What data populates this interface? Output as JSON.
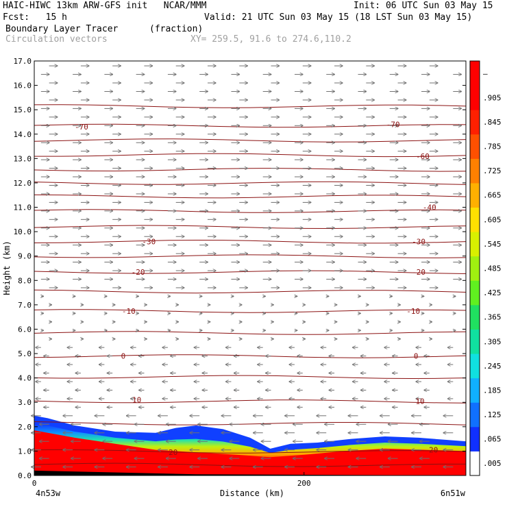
{
  "header": {
    "line1_left": "HAIC-HIWC 13km ARW-GFS init   NCAR/MMM",
    "line1_right": "Init: 06 UTC Sun 03 May 15",
    "line2_left": "Fcst:   15 h",
    "line2_right": "Valid: 21 UTC Sun 03 May 15 (18 LST Sun 03 May 15)",
    "field_name": "Boundary Layer Tracer",
    "field_unit": "(fraction)",
    "vector_label": "Circulation vectors",
    "xy_label": "XY= 259.5, 91.6 to 274.6,110.2"
  },
  "chart_data": {
    "type": "heatmap",
    "ylabel": "Height (km)",
    "xlabel": "Distance (km)",
    "ylim": [
      0,
      17
    ],
    "yticks": [
      "0.0",
      "1.0",
      "2.0",
      "3.0",
      "4.0",
      "5.0",
      "6.0",
      "7.0",
      "8.0",
      "9.0",
      "10.0",
      "11.0",
      "12.0",
      "13.0",
      "14.0",
      "15.0",
      "16.0",
      "17.0"
    ],
    "xlim": [
      0,
      320
    ],
    "xticks": [
      {
        "value": 0,
        "label": "0"
      },
      {
        "value": 200,
        "label": "200"
      }
    ],
    "x_endpoints": {
      "left": "4n53w",
      "right": "6n51w"
    },
    "colorbar": {
      "labels": [
        ".005",
        ".065",
        ".125",
        ".185",
        ".245",
        ".305",
        ".365",
        ".425",
        ".485",
        ".545",
        ".605",
        ".665",
        ".725",
        ".785",
        ".845",
        ".905",
        "–"
      ],
      "colors": [
        "#ffffff",
        "#1030ff",
        "#1070ff",
        "#10b0ff",
        "#10e0e0",
        "#10e0a0",
        "#20e060",
        "#60f020",
        "#a0f010",
        "#d8f000",
        "#ffe000",
        "#ffb000",
        "#ff8000",
        "#ff5000",
        "#ff2000",
        "#ff0000",
        "#ff0000"
      ]
    },
    "temperature_contour_labels": [
      {
        "label": "20",
        "x": 103,
        "y": 0.95
      },
      {
        "label": "20",
        "x": 296,
        "y": 1.05
      },
      {
        "label": "10",
        "x": 76,
        "y": 3.1
      },
      {
        "label": "10",
        "x": 286,
        "y": 3.05
      },
      {
        "label": "0",
        "x": 66,
        "y": 4.9
      },
      {
        "label": "0",
        "x": 283,
        "y": 4.9
      },
      {
        "label": "-10",
        "x": 70,
        "y": 6.75
      },
      {
        "label": "-10",
        "x": 281,
        "y": 6.75
      },
      {
        "label": "-20",
        "x": 77,
        "y": 8.35
      },
      {
        "label": "-20",
        "x": 285,
        "y": 8.35
      },
      {
        "label": "-30",
        "x": 85,
        "y": 9.6
      },
      {
        "label": "-30",
        "x": 285,
        "y": 9.6
      },
      {
        "label": "-40",
        "x": 293,
        "y": 11.0
      },
      {
        "label": "-60",
        "x": 288,
        "y": 13.1
      },
      {
        "label": "-70",
        "x": 35,
        "y": 14.3
      },
      {
        "label": "-70",
        "x": 266,
        "y": 14.4
      }
    ],
    "temperature_contour_levels_km": [
      0.45,
      1.0,
      2.15,
      3.05,
      4.05,
      4.9,
      5.85,
      6.75,
      7.55,
      8.35,
      9.0,
      9.6,
      10.2,
      10.85,
      11.45,
      12.0,
      12.55,
      13.15,
      13.75,
      14.35,
      15.15
    ],
    "blt_top_km": [
      [
        0,
        2.45
      ],
      [
        10,
        2.35
      ],
      [
        30,
        2.05
      ],
      [
        60,
        1.8
      ],
      [
        90,
        1.75
      ],
      [
        105,
        1.95
      ],
      [
        120,
        2.05
      ],
      [
        140,
        1.9
      ],
      [
        160,
        1.55
      ],
      [
        175,
        1.1
      ],
      [
        190,
        1.3
      ],
      [
        210,
        1.35
      ],
      [
        235,
        1.5
      ],
      [
        260,
        1.6
      ],
      [
        285,
        1.55
      ],
      [
        320,
        1.4
      ]
    ],
    "red_top_km": [
      [
        0,
        1.85
      ],
      [
        30,
        1.55
      ],
      [
        60,
        1.3
      ],
      [
        90,
        1.05
      ],
      [
        120,
        0.95
      ],
      [
        150,
        0.85
      ],
      [
        175,
        0.75
      ],
      [
        200,
        0.85
      ],
      [
        230,
        1.0
      ],
      [
        260,
        1.1
      ],
      [
        290,
        1.05
      ],
      [
        320,
        1.0
      ]
    ],
    "terrain_km": [
      [
        0,
        0.2
      ],
      [
        120,
        0.05
      ],
      [
        320,
        0.0
      ]
    ]
  }
}
